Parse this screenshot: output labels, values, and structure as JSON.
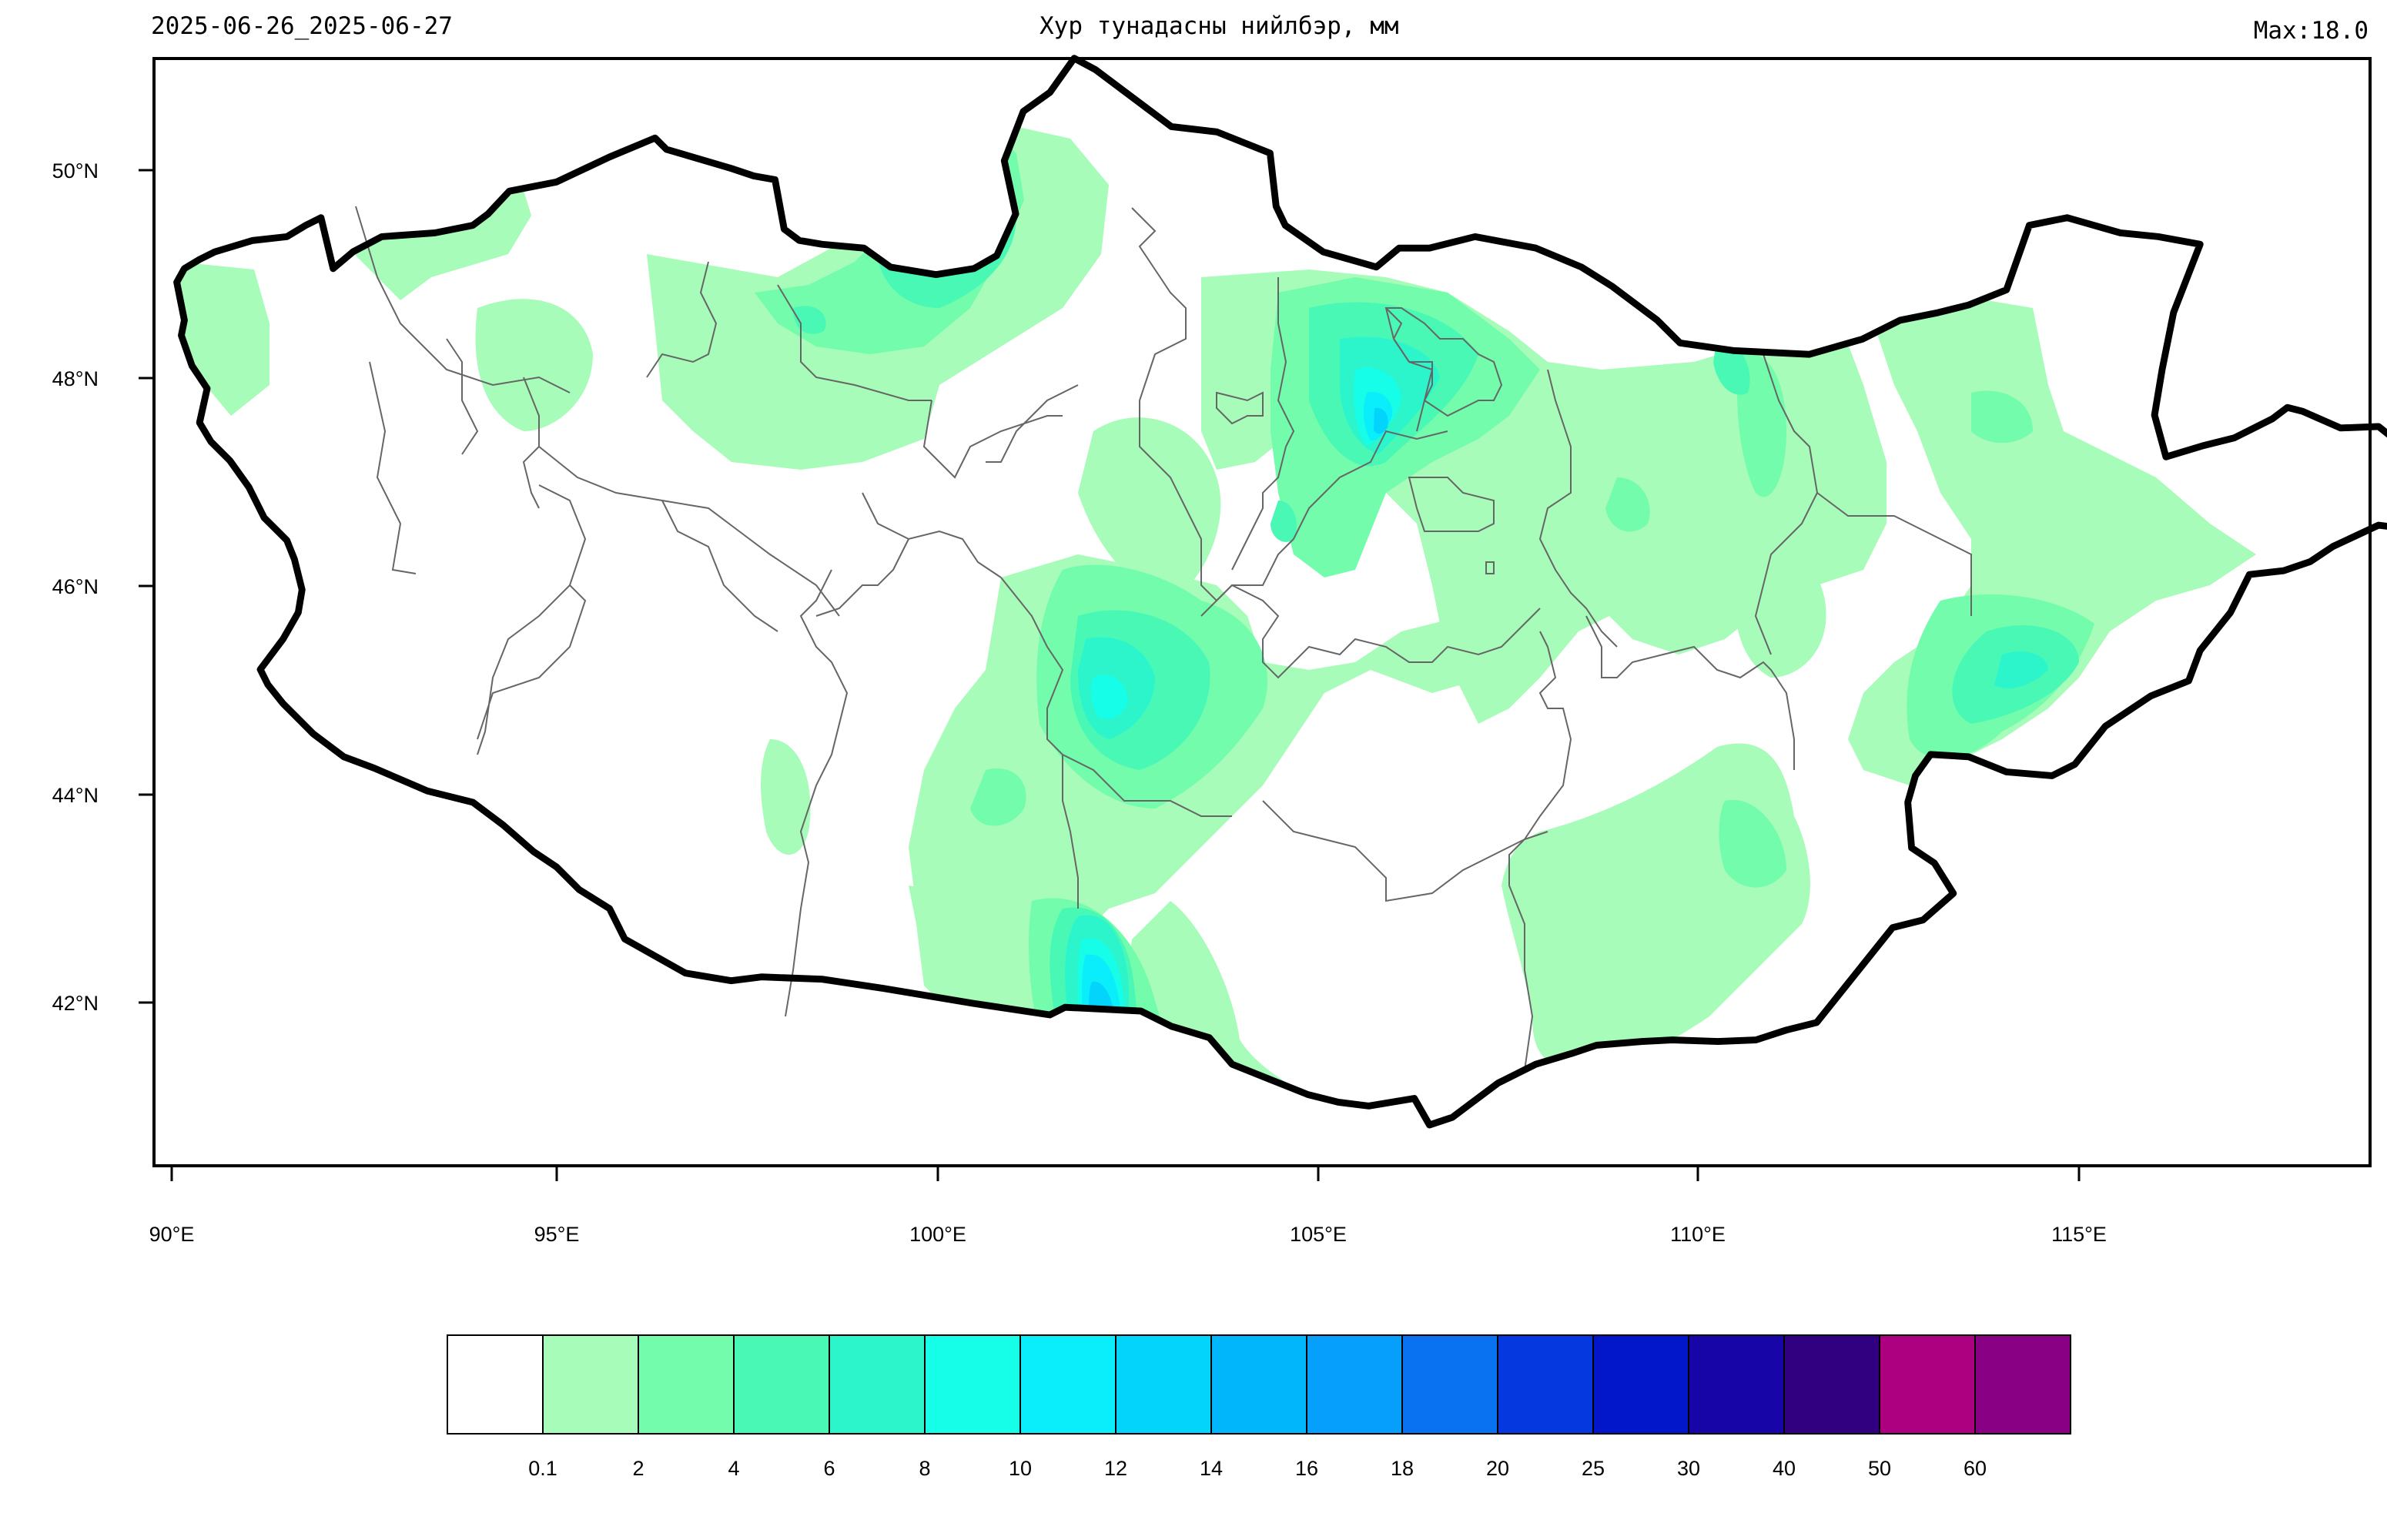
{
  "header": {
    "date_range": "2025-06-26_2025-06-27",
    "title": "Хур тунадасны нийлбэр, мм",
    "max_label": "Max:18.0"
  },
  "map": {
    "lat_labels": [
      "50°N",
      "48°N",
      "46°N",
      "44°N",
      "42°N"
    ],
    "lon_labels": [
      "90°E",
      "95°E",
      "100°E",
      "105°E",
      "110°E",
      "115°E"
    ],
    "colors": {
      "country_border": "#000000",
      "province_border": "#666666",
      "frame": "#000000"
    }
  },
  "legend": {
    "colors": [
      "#ffffff",
      "#a6fcb8",
      "#72fcab",
      "#4af8b5",
      "#2cf5cb",
      "#16fde8",
      "#0aeefc",
      "#03d4fc",
      "#02b6fc",
      "#069ffc",
      "#0872f0",
      "#0638df",
      "#0317ca",
      "#1805a7",
      "#310080",
      "#ac0080",
      "#8a0084"
    ],
    "labels": [
      "0.1",
      "2",
      "4",
      "6",
      "8",
      "10",
      "12",
      "14",
      "16",
      "18",
      "20",
      "25",
      "30",
      "40",
      "50",
      "60"
    ]
  }
}
